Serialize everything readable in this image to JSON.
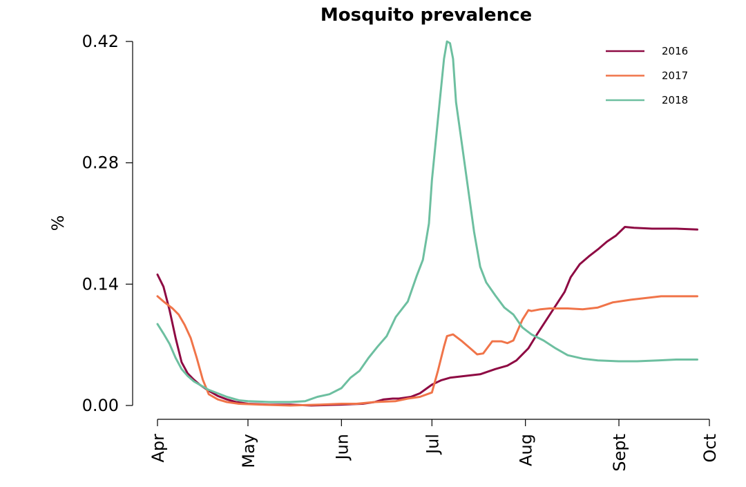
{
  "chart_data": {
    "type": "line",
    "title": "Mosquito prevalence",
    "xlabel": "",
    "ylabel": "%",
    "ylim": [
      0,
      0.42
    ],
    "xlim": [
      "2000-04-01",
      "2000-10-01"
    ],
    "grid": false,
    "legend_position": "top-right",
    "y_ticks": [
      {
        "value": 0.0,
        "label": "0.00"
      },
      {
        "value": 0.14,
        "label": "0.14"
      },
      {
        "value": 0.28,
        "label": "0.28"
      },
      {
        "value": 0.42,
        "label": "0.42"
      }
    ],
    "x_ticks": [
      {
        "date": "2000-04-01",
        "label": "Apr"
      },
      {
        "date": "2000-05-01",
        "label": "May"
      },
      {
        "date": "2000-06-01",
        "label": "Jun"
      },
      {
        "date": "2000-07-01",
        "label": "Jul"
      },
      {
        "date": "2000-08-01",
        "label": "Aug"
      },
      {
        "date": "2000-09-01",
        "label": "Sept"
      },
      {
        "date": "2000-10-01",
        "label": "Oct"
      }
    ],
    "series": [
      {
        "name": "2016",
        "color": "#8e0a43",
        "points": [
          [
            "2000-04-01",
            0.151
          ],
          [
            "2000-04-03",
            0.137
          ],
          [
            "2000-04-05",
            0.11
          ],
          [
            "2000-04-07",
            0.078
          ],
          [
            "2000-04-09",
            0.05
          ],
          [
            "2000-04-11",
            0.037
          ],
          [
            "2000-04-13",
            0.03
          ],
          [
            "2000-04-15",
            0.024
          ],
          [
            "2000-04-18",
            0.017
          ],
          [
            "2000-04-21",
            0.011
          ],
          [
            "2000-04-24",
            0.007
          ],
          [
            "2000-04-27",
            0.004
          ],
          [
            "2000-05-01",
            0.002
          ],
          [
            "2000-05-08",
            0.001
          ],
          [
            "2000-05-15",
            0.001
          ],
          [
            "2000-05-22",
            0.0
          ],
          [
            "2000-06-01",
            0.001
          ],
          [
            "2000-06-08",
            0.002
          ],
          [
            "2000-06-12",
            0.004
          ],
          [
            "2000-06-15",
            0.007
          ],
          [
            "2000-06-18",
            0.008
          ],
          [
            "2000-06-20",
            0.008
          ],
          [
            "2000-06-24",
            0.01
          ],
          [
            "2000-06-27",
            0.014
          ],
          [
            "2000-07-01",
            0.024
          ],
          [
            "2000-07-04",
            0.029
          ],
          [
            "2000-07-07",
            0.032
          ],
          [
            "2000-07-12",
            0.034
          ],
          [
            "2000-07-17",
            0.036
          ],
          [
            "2000-07-22",
            0.042
          ],
          [
            "2000-07-26",
            0.046
          ],
          [
            "2000-07-29",
            0.052
          ],
          [
            "2000-08-02",
            0.066
          ],
          [
            "2000-08-05",
            0.083
          ],
          [
            "2000-08-08",
            0.099
          ],
          [
            "2000-08-11",
            0.115
          ],
          [
            "2000-08-14",
            0.131
          ],
          [
            "2000-08-16",
            0.148
          ],
          [
            "2000-08-19",
            0.163
          ],
          [
            "2000-08-22",
            0.172
          ],
          [
            "2000-08-25",
            0.18
          ],
          [
            "2000-08-28",
            0.189
          ],
          [
            "2000-08-31",
            0.196
          ],
          [
            "2000-09-03",
            0.206
          ],
          [
            "2000-09-06",
            0.205
          ],
          [
            "2000-09-12",
            0.204
          ],
          [
            "2000-09-20",
            0.204
          ],
          [
            "2000-09-27",
            0.203
          ]
        ]
      },
      {
        "name": "2017",
        "color": "#f07449",
        "points": [
          [
            "2000-04-01",
            0.126
          ],
          [
            "2000-04-03",
            0.12
          ],
          [
            "2000-04-06",
            0.112
          ],
          [
            "2000-04-08",
            0.105
          ],
          [
            "2000-04-10",
            0.093
          ],
          [
            "2000-04-12",
            0.078
          ],
          [
            "2000-04-14",
            0.055
          ],
          [
            "2000-04-16",
            0.03
          ],
          [
            "2000-04-18",
            0.013
          ],
          [
            "2000-04-21",
            0.007
          ],
          [
            "2000-04-24",
            0.004
          ],
          [
            "2000-04-28",
            0.002
          ],
          [
            "2000-05-05",
            0.001
          ],
          [
            "2000-05-15",
            0.0
          ],
          [
            "2000-05-25",
            0.001
          ],
          [
            "2000-06-01",
            0.002
          ],
          [
            "2000-06-06",
            0.002
          ],
          [
            "2000-06-12",
            0.004
          ],
          [
            "2000-06-19",
            0.005
          ],
          [
            "2000-06-23",
            0.008
          ],
          [
            "2000-06-27",
            0.01
          ],
          [
            "2000-07-01",
            0.015
          ],
          [
            "2000-07-03",
            0.04
          ],
          [
            "2000-07-05",
            0.068
          ],
          [
            "2000-07-06",
            0.08
          ],
          [
            "2000-07-08",
            0.082
          ],
          [
            "2000-07-11",
            0.074
          ],
          [
            "2000-07-14",
            0.065
          ],
          [
            "2000-07-16",
            0.059
          ],
          [
            "2000-07-18",
            0.06
          ],
          [
            "2000-07-21",
            0.074
          ],
          [
            "2000-07-24",
            0.074
          ],
          [
            "2000-07-26",
            0.072
          ],
          [
            "2000-07-28",
            0.075
          ],
          [
            "2000-07-31",
            0.099
          ],
          [
            "2000-08-02",
            0.11
          ],
          [
            "2000-08-03",
            0.109
          ],
          [
            "2000-08-06",
            0.111
          ],
          [
            "2000-08-09",
            0.112
          ],
          [
            "2000-08-15",
            0.112
          ],
          [
            "2000-08-20",
            0.111
          ],
          [
            "2000-08-25",
            0.113
          ],
          [
            "2000-08-30",
            0.119
          ],
          [
            "2000-09-05",
            0.122
          ],
          [
            "2000-09-10",
            0.124
          ],
          [
            "2000-09-15",
            0.126
          ],
          [
            "2000-09-20",
            0.126
          ],
          [
            "2000-09-27",
            0.126
          ]
        ]
      },
      {
        "name": "2018",
        "color": "#6dbfa0",
        "points": [
          [
            "2000-04-01",
            0.094
          ],
          [
            "2000-04-03",
            0.083
          ],
          [
            "2000-04-05",
            0.071
          ],
          [
            "2000-04-07",
            0.055
          ],
          [
            "2000-04-09",
            0.042
          ],
          [
            "2000-04-11",
            0.034
          ],
          [
            "2000-04-13",
            0.028
          ],
          [
            "2000-04-15",
            0.024
          ],
          [
            "2000-04-18",
            0.018
          ],
          [
            "2000-04-21",
            0.014
          ],
          [
            "2000-04-24",
            0.01
          ],
          [
            "2000-04-28",
            0.006
          ],
          [
            "2000-05-01",
            0.005
          ],
          [
            "2000-05-08",
            0.004
          ],
          [
            "2000-05-15",
            0.004
          ],
          [
            "2000-05-20",
            0.005
          ],
          [
            "2000-05-24",
            0.01
          ],
          [
            "2000-05-28",
            0.013
          ],
          [
            "2000-06-01",
            0.02
          ],
          [
            "2000-06-04",
            0.032
          ],
          [
            "2000-06-07",
            0.04
          ],
          [
            "2000-06-10",
            0.055
          ],
          [
            "2000-06-13",
            0.068
          ],
          [
            "2000-06-16",
            0.08
          ],
          [
            "2000-06-19",
            0.102
          ],
          [
            "2000-06-23",
            0.12
          ],
          [
            "2000-06-26",
            0.15
          ],
          [
            "2000-06-28",
            0.168
          ],
          [
            "2000-06-30",
            0.21
          ],
          [
            "2000-07-01",
            0.26
          ],
          [
            "2000-07-03",
            0.33
          ],
          [
            "2000-07-05",
            0.4
          ],
          [
            "2000-07-06",
            0.42
          ],
          [
            "2000-07-07",
            0.418
          ],
          [
            "2000-07-08",
            0.4
          ],
          [
            "2000-07-09",
            0.35
          ],
          [
            "2000-07-11",
            0.3
          ],
          [
            "2000-07-13",
            0.25
          ],
          [
            "2000-07-15",
            0.2
          ],
          [
            "2000-07-17",
            0.16
          ],
          [
            "2000-07-19",
            0.142
          ],
          [
            "2000-07-22",
            0.127
          ],
          [
            "2000-07-25",
            0.113
          ],
          [
            "2000-07-28",
            0.105
          ],
          [
            "2000-07-31",
            0.09
          ],
          [
            "2000-08-03",
            0.082
          ],
          [
            "2000-08-07",
            0.075
          ],
          [
            "2000-08-11",
            0.066
          ],
          [
            "2000-08-15",
            0.058
          ],
          [
            "2000-08-20",
            0.054
          ],
          [
            "2000-08-25",
            0.052
          ],
          [
            "2000-09-01",
            0.051
          ],
          [
            "2000-09-07",
            0.051
          ],
          [
            "2000-09-14",
            0.052
          ],
          [
            "2000-09-20",
            0.053
          ],
          [
            "2000-09-27",
            0.053
          ]
        ]
      }
    ]
  }
}
